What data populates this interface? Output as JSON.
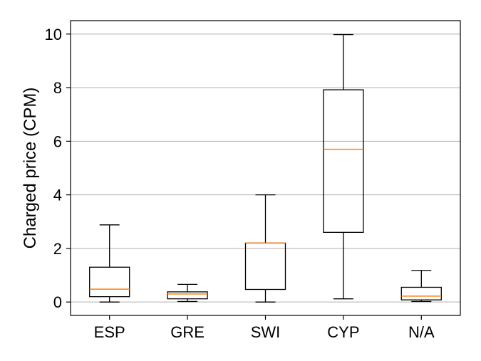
{
  "chart_data": {
    "type": "box",
    "title": "",
    "xlabel": "",
    "ylabel": "Charged price (CPM)",
    "ylim": [
      -0.5,
      10.5
    ],
    "yticks": [
      0,
      2,
      4,
      6,
      8,
      10
    ],
    "grid": "horizontal",
    "categories": [
      "ESP",
      "GRE",
      "SWI",
      "CYP",
      "N/A"
    ],
    "boxes": [
      {
        "category": "ESP",
        "whisker_low": 0.0,
        "q1": 0.2,
        "median": 0.48,
        "q3": 1.3,
        "whisker_high": 2.88
      },
      {
        "category": "GRE",
        "whisker_low": 0.02,
        "q1": 0.12,
        "median": 0.3,
        "q3": 0.38,
        "whisker_high": 0.66
      },
      {
        "category": "SWI",
        "whisker_low": 0.0,
        "q1": 0.47,
        "median": 2.2,
        "q3": 2.2,
        "whisker_high": 4.0
      },
      {
        "category": "CYP",
        "whisker_low": 0.12,
        "q1": 2.6,
        "median": 5.7,
        "q3": 7.92,
        "whisker_high": 9.98
      },
      {
        "category": "N/A",
        "whisker_low": 0.02,
        "q1": 0.08,
        "median": 0.22,
        "q3": 0.55,
        "whisker_high": 1.18
      }
    ],
    "colors": {
      "box": "#000000",
      "median": "#ff7f0e",
      "grid": "#b0b0b0"
    }
  }
}
